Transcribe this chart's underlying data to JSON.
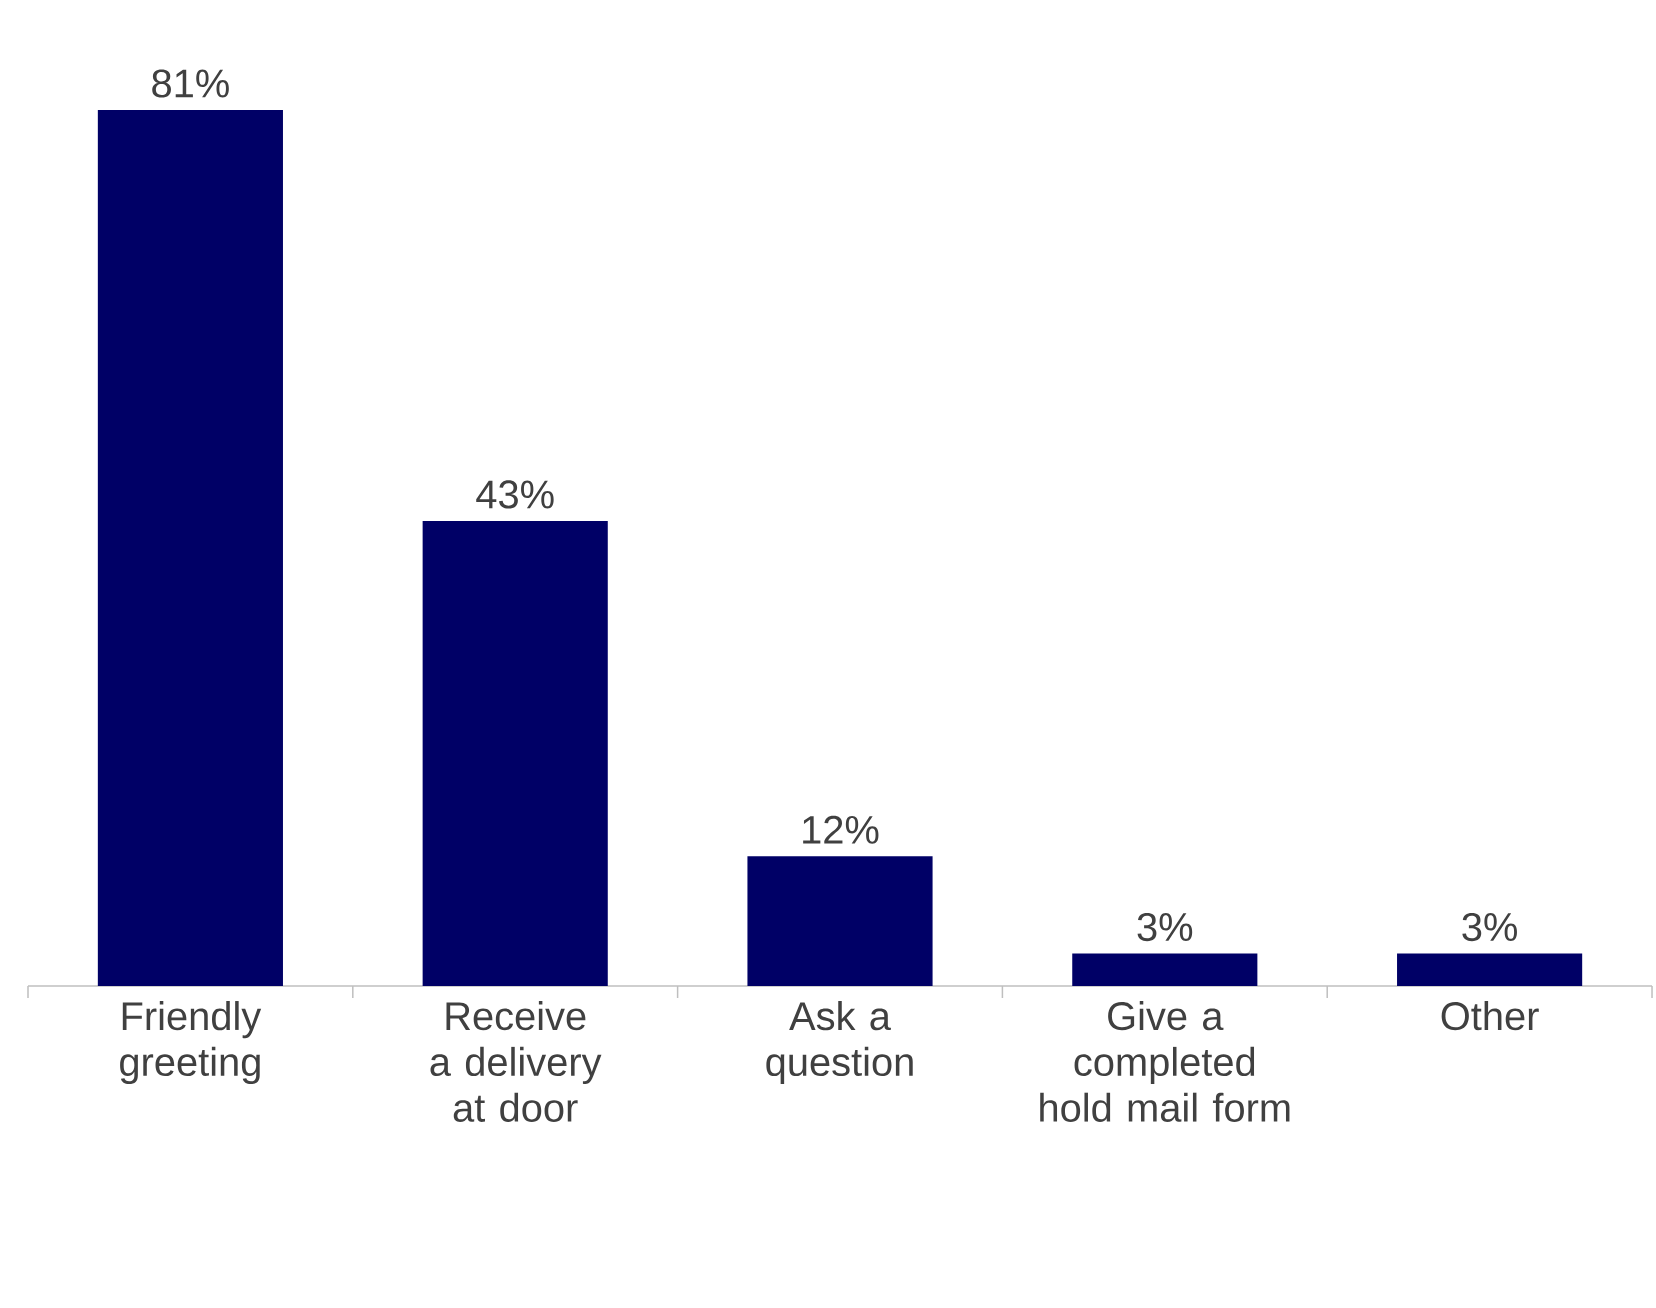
{
  "chart_data": {
    "type": "bar",
    "categories": [
      "Friendly greeting",
      "Receive a delivery at door",
      "Ask a question",
      "Give a completed hold mail form",
      "Other"
    ],
    "values": [
      81,
      43,
      12,
      3,
      3
    ],
    "color": "#000066",
    "value_labels": [
      "81%",
      "43%",
      "12%",
      "3%",
      "3%"
    ]
  }
}
